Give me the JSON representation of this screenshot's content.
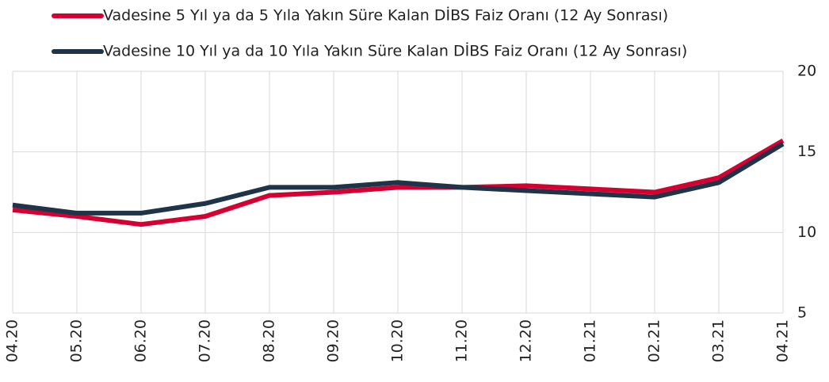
{
  "chart_data": {
    "type": "line",
    "categories": [
      "04.20",
      "05.20",
      "06.20",
      "07.20",
      "08.20",
      "09.20",
      "10.20",
      "11.20",
      "12.20",
      "01.21",
      "02.21",
      "03.21",
      "04.21"
    ],
    "series": [
      {
        "name": "Vadesine 5 Yıl ya da 5 Yıla Yakın Süre Kalan DİBS Faiz Oranı (12 Ay Sonrası)",
        "color": "#d50032",
        "values": [
          11.4,
          11.0,
          10.5,
          11.0,
          12.3,
          12.5,
          12.8,
          12.8,
          12.9,
          12.7,
          12.5,
          13.4,
          15.7
        ]
      },
      {
        "name": "Vadesine 10 Yıl ya da 10 Yıla Yakın Süre Kalan DİBS Faiz Oranı (12 Ay Sonrası)",
        "color": "#1f3349",
        "values": [
          11.7,
          11.2,
          11.2,
          11.8,
          12.8,
          12.8,
          13.1,
          12.8,
          12.6,
          12.4,
          12.2,
          13.1,
          15.5
        ]
      }
    ],
    "ylim": [
      5,
      20
    ],
    "yticks": [
      5,
      10,
      15,
      20
    ],
    "grid": true
  }
}
